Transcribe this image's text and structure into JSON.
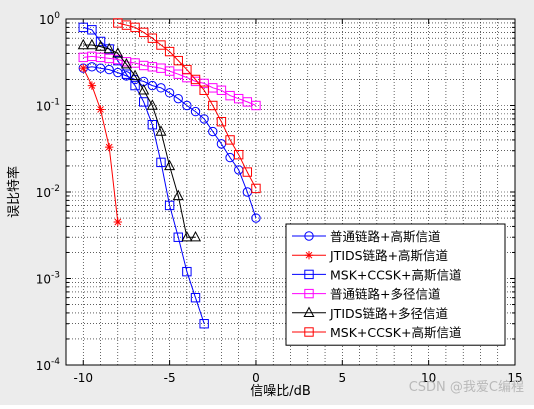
{
  "chart_data": {
    "type": "line",
    "xlabel": "信噪比/dB",
    "ylabel": "误比特率",
    "xlim": [
      -11,
      15
    ],
    "ylim": [
      0.0001,
      1
    ],
    "yscale": "log",
    "grid": true,
    "legend_position": "lower-right",
    "x_ticks": [
      "-10",
      "-5",
      "0",
      "5",
      "10",
      "15"
    ],
    "y_ticks": [
      "10^-4",
      "10^-3",
      "10^-2",
      "10^-1",
      "10^0"
    ],
    "series": [
      {
        "name": "普通链路+高斯信道",
        "color": "#0000ff",
        "marker": "circle",
        "x": [
          -10,
          -9.5,
          -9,
          -8.5,
          -8,
          -7.5,
          -7,
          -6.5,
          -6,
          -5.5,
          -5,
          -4.5,
          -4,
          -3.5,
          -3,
          -2.5,
          -2,
          -1.5,
          -1,
          -0.5,
          0
        ],
        "y": [
          0.27,
          0.28,
          0.27,
          0.26,
          0.24,
          0.22,
          0.2,
          0.19,
          0.17,
          0.16,
          0.14,
          0.12,
          0.1,
          0.085,
          0.07,
          0.05,
          0.036,
          0.025,
          0.018,
          0.01,
          0.005
        ]
      },
      {
        "name": "JTIDS链路+高斯信道",
        "color": "#ff0000",
        "marker": "star",
        "x": [
          -10,
          -9.5,
          -9,
          -8.5,
          -8
        ],
        "y": [
          0.27,
          0.17,
          0.09,
          0.033,
          0.0045
        ]
      },
      {
        "name": "MSK+CCSK+高斯信道",
        "color": "#0000ff",
        "marker": "square",
        "x": [
          -10,
          -9.5,
          -9,
          -8.5,
          -8,
          -7.5,
          -7,
          -6.5,
          -6,
          -5.5,
          -5,
          -4.5,
          -4,
          -3.5,
          -3
        ],
        "y": [
          0.8,
          0.75,
          0.55,
          0.45,
          0.33,
          0.23,
          0.17,
          0.11,
          0.06,
          0.022,
          0.007,
          0.003,
          0.0012,
          0.0006,
          0.0003
        ]
      },
      {
        "name": "普通链路+多径信道",
        "color": "#ff00ff",
        "marker": "square",
        "x": [
          -10,
          -9.5,
          -9,
          -8.5,
          -8,
          -7.5,
          -7,
          -6.5,
          -6,
          -5.5,
          -5,
          -4.5,
          -4,
          -3.5,
          -3,
          -2.5,
          -2,
          -1.5,
          -1,
          -0.5,
          0
        ],
        "y": [
          0.36,
          0.37,
          0.36,
          0.35,
          0.34,
          0.32,
          0.31,
          0.29,
          0.28,
          0.27,
          0.25,
          0.23,
          0.21,
          0.19,
          0.18,
          0.16,
          0.15,
          0.13,
          0.12,
          0.11,
          0.1
        ]
      },
      {
        "name": "JTIDS链路+多径信道",
        "color": "#000000",
        "marker": "triangle",
        "x": [
          -10,
          -9.5,
          -9,
          -8.5,
          -8,
          -7.5,
          -7,
          -6.5,
          -6,
          -5.5,
          -5,
          -4.5,
          -4,
          -3.5
        ],
        "y": [
          0.5,
          0.5,
          0.48,
          0.45,
          0.4,
          0.3,
          0.22,
          0.15,
          0.1,
          0.05,
          0.02,
          0.009,
          0.003,
          0.003
        ]
      },
      {
        "name": "MSK+CCSK+高斯信道",
        "color": "#ff0000",
        "marker": "square",
        "x": [
          -8,
          -7.5,
          -7,
          -6.5,
          -6,
          -5.5,
          -5,
          -4.5,
          -4,
          -3.5,
          -3,
          -2.5,
          -2,
          -1.5,
          -1,
          -0.5,
          0
        ],
        "y": [
          0.9,
          0.85,
          0.8,
          0.7,
          0.6,
          0.5,
          0.42,
          0.33,
          0.26,
          0.2,
          0.15,
          0.1,
          0.065,
          0.04,
          0.027,
          0.017,
          0.011
        ]
      }
    ]
  },
  "watermark": "CSDN @我爱C编程"
}
